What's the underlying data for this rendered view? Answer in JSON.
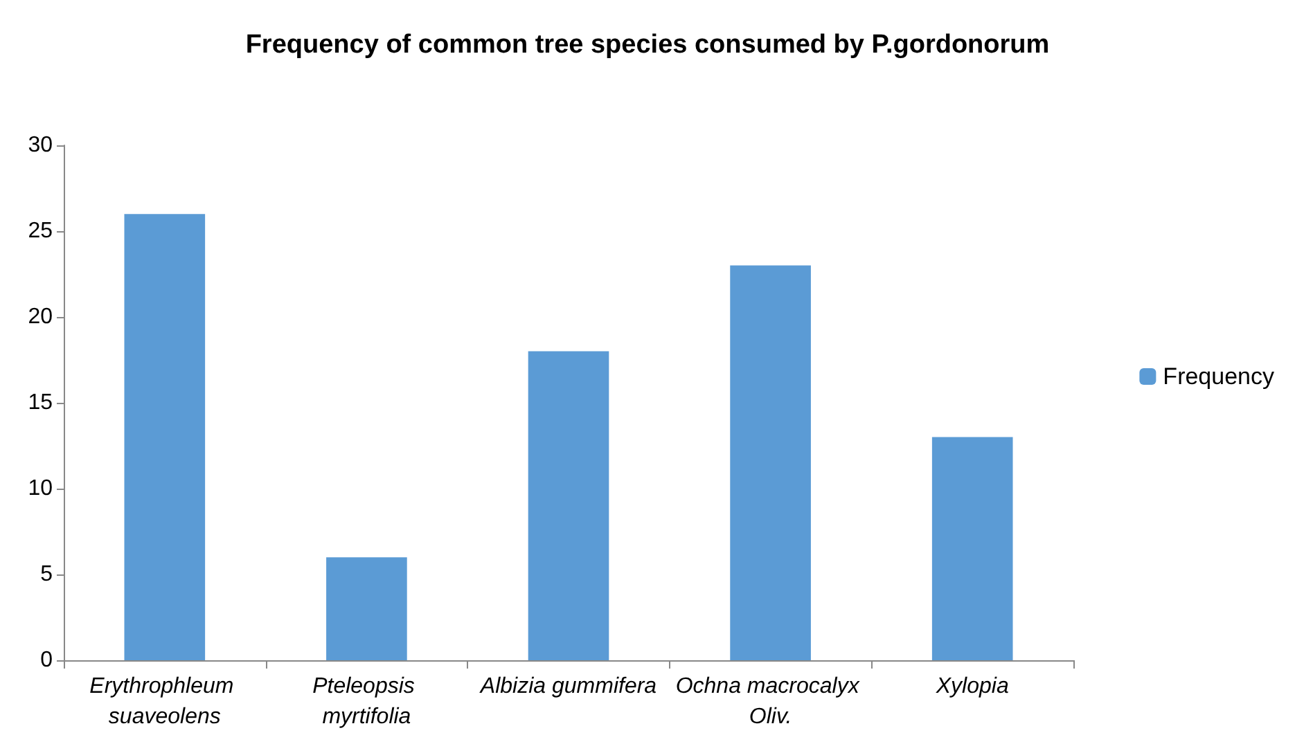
{
  "chart_data": {
    "type": "bar",
    "title": "Frequency of common tree species consumed by P.gordonorum",
    "categories": [
      "Erythrophleum suaveolens",
      "Pteleopsis myrtifolia",
      "Albizia gummifera",
      "Ochna macrocalyx Oliv.",
      "Xylopia"
    ],
    "series": [
      {
        "name": "Frequency",
        "color": "#5b9bd5",
        "values": [
          26,
          6,
          18,
          23,
          13
        ]
      }
    ],
    "ylim": [
      0,
      30
    ],
    "yticks": [
      0,
      5,
      10,
      15,
      20,
      25,
      30
    ],
    "grid": false,
    "legend": "right"
  }
}
